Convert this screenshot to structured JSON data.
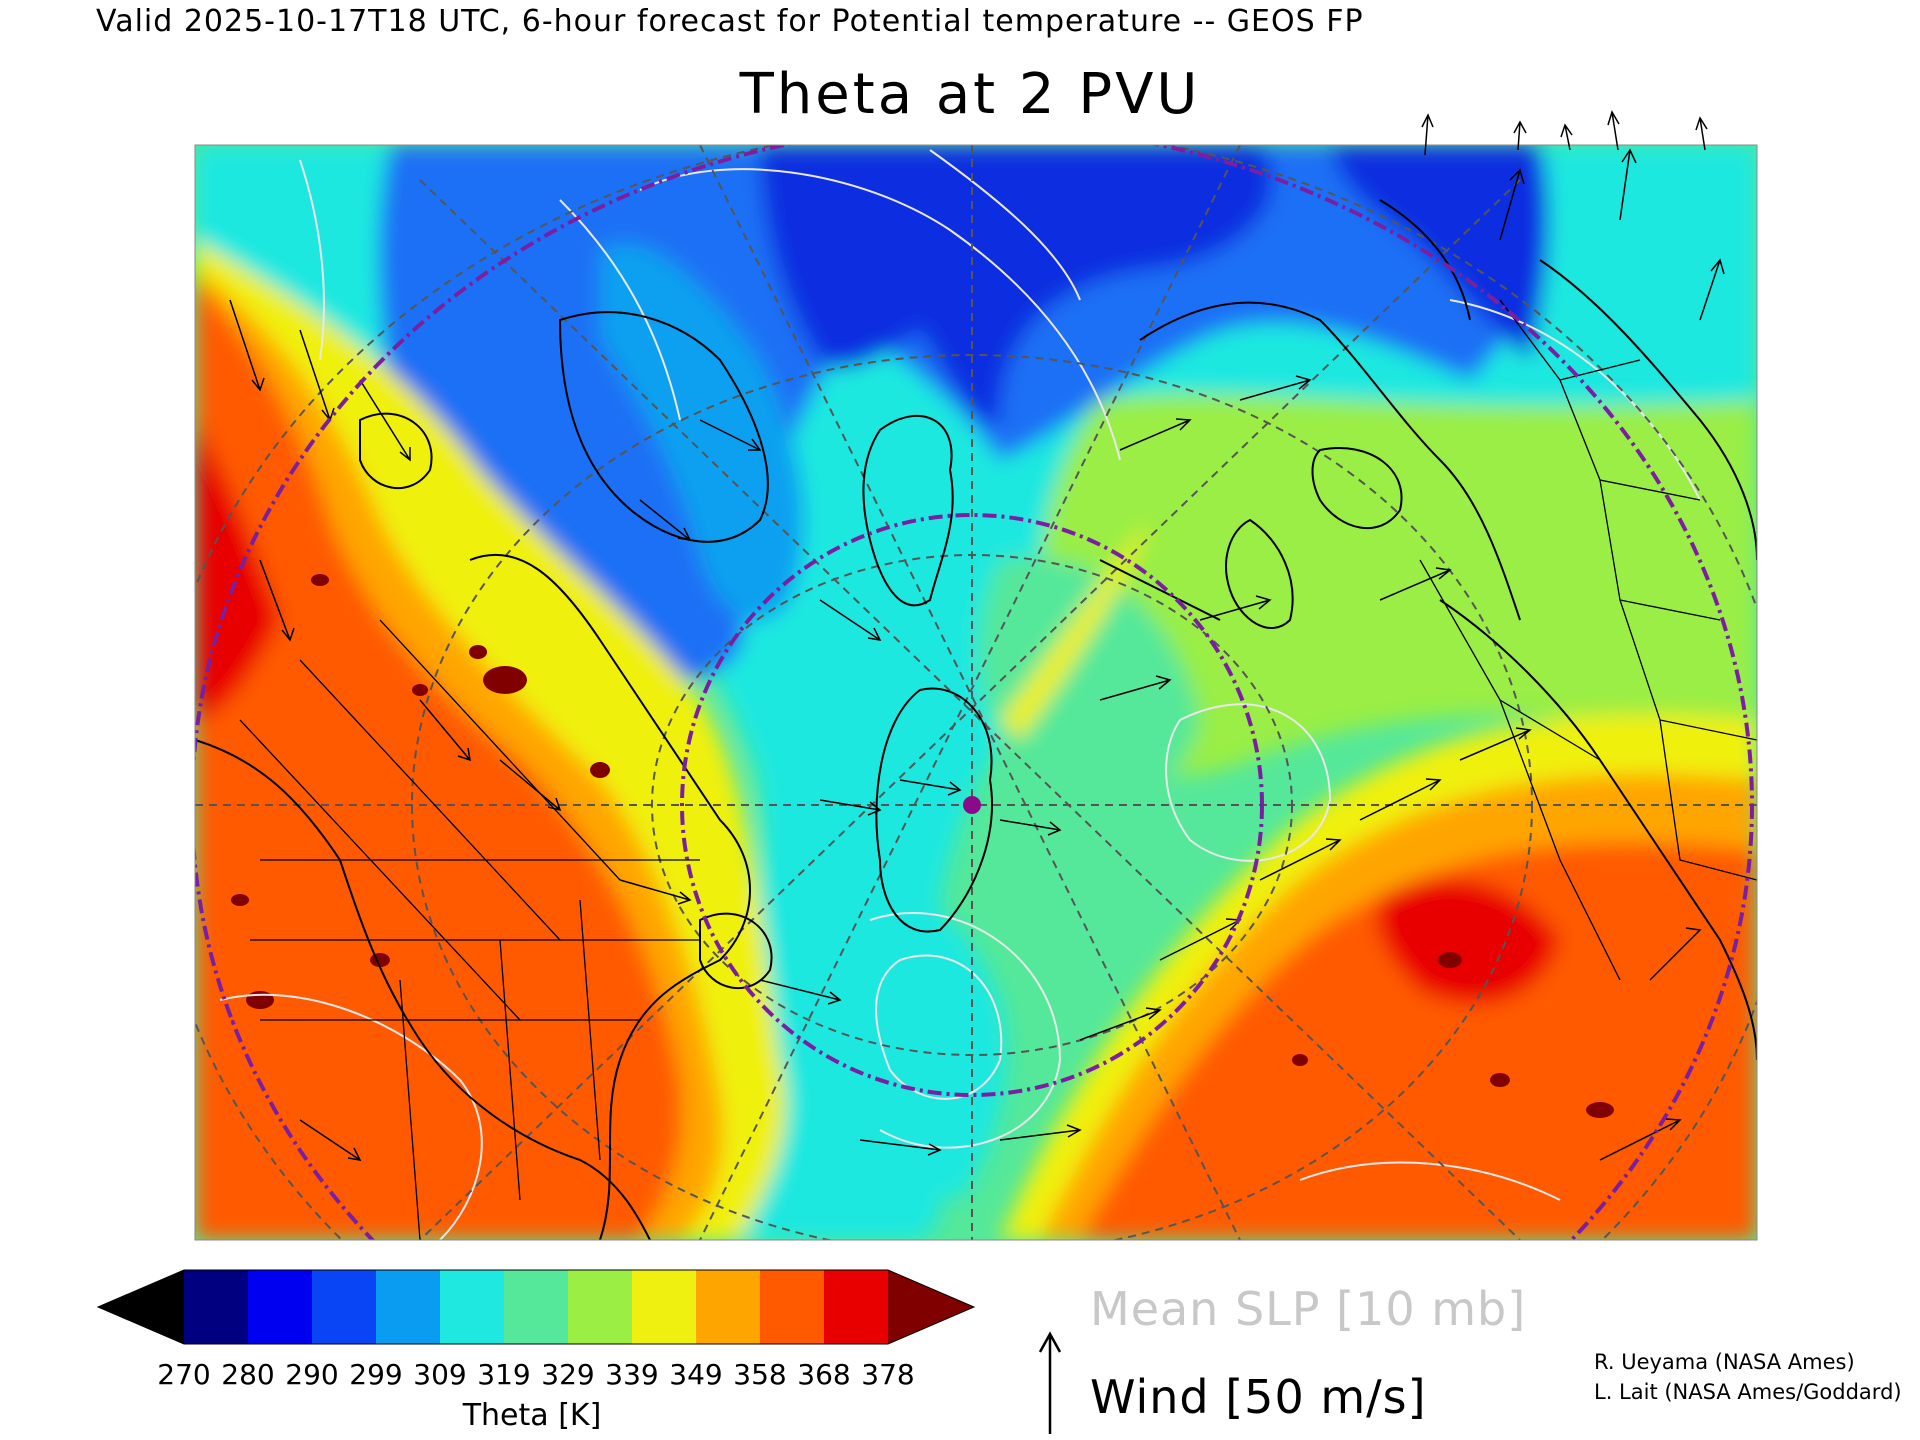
{
  "header": {
    "valid_line": "Valid 2025-10-17T18 UTC, 6-hour forecast for Potential temperature -- GEOS FP",
    "title": "Theta at 2 PVU"
  },
  "map": {
    "field": "Potential temperature on the 2 PVU surface",
    "field_colors": {
      "cold_core": "#0a2ee0",
      "cold": "#1e6ff5",
      "cool": "#0fa0f0",
      "mid": "#1ee8e0",
      "mild": "#55e89a",
      "warm_green": "#9aee44",
      "yellow": "#f0f010",
      "orange": "#ffa500",
      "red_orange": "#ff5a00",
      "red": "#e80000",
      "dark_red": "#800000"
    },
    "slp_contour_color": "#e8e8e8",
    "coastline_color": "#000000",
    "graticule_color": "#555555",
    "domain_circle_color": "#7b1fa2",
    "marker_color": "#8b0a8b"
  },
  "colorbar": {
    "colors": [
      "#000000",
      "#000080",
      "#0000f0",
      "#0a45f5",
      "#0a9cf0",
      "#1ee8e0",
      "#55e89a",
      "#9aee44",
      "#f0f010",
      "#ffa500",
      "#ff5a00",
      "#e80000",
      "#800000"
    ],
    "ticks": [
      "270",
      "280",
      "290",
      "299",
      "309",
      "319",
      "329",
      "339",
      "349",
      "358",
      "368",
      "378"
    ],
    "label": "Theta [K]"
  },
  "legend": {
    "slp": "Mean SLP [10 mb]",
    "wind": "Wind [50 m/s]"
  },
  "credits": {
    "line1": "R. Ueyama (NASA Ames)",
    "line2": "L. Lait (NASA Ames/Goddard)"
  }
}
